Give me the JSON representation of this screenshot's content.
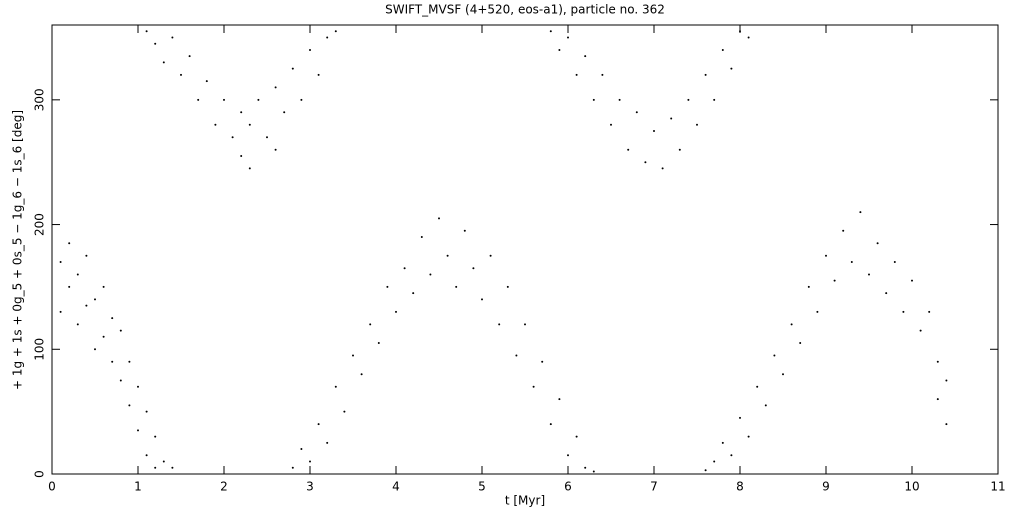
{
  "chart_data": {
    "type": "scatter",
    "title": "SWIFT_MVSF (4+520, eos-a1), particle no. 362",
    "x_label": "t [Myr]",
    "y_label": "+ 1g + 1s + 0g_5 + 0s_5 − 1g_6 − 1s_6 [deg]",
    "color": "#000000",
    "xlim": [
      0,
      11
    ],
    "ylim": [
      0,
      360
    ],
    "xticks": [
      0,
      1,
      2,
      3,
      4,
      5,
      6,
      7,
      8,
      9,
      10,
      11
    ],
    "yticks": [
      0,
      100,
      200,
      300
    ],
    "x": [
      0.1,
      0.1,
      0.2,
      0.2,
      0.3,
      0.3,
      0.4,
      0.4,
      0.5,
      0.5,
      0.6,
      0.6,
      0.7,
      0.7,
      0.8,
      0.8,
      0.9,
      0.9,
      1.0,
      1.0,
      1.1,
      1.1,
      1.2,
      1.2,
      1.3,
      1.4,
      1.1,
      1.2,
      1.3,
      1.4,
      1.5,
      1.6,
      1.7,
      1.8,
      1.9,
      2.0,
      2.1,
      2.2,
      2.2,
      2.3,
      2.3,
      2.4,
      2.5,
      2.6,
      2.6,
      2.7,
      2.8,
      2.9,
      3.0,
      3.1,
      3.2,
      3.3,
      2.8,
      2.9,
      3.0,
      3.1,
      3.2,
      3.3,
      3.4,
      3.5,
      3.6,
      3.7,
      3.8,
      3.9,
      4.0,
      4.1,
      4.2,
      4.3,
      4.4,
      4.5,
      4.6,
      4.7,
      4.8,
      4.9,
      5.0,
      5.1,
      5.2,
      5.3,
      5.4,
      5.5,
      5.6,
      5.7,
      5.8,
      5.9,
      6.0,
      6.1,
      6.2,
      6.3,
      5.8,
      5.9,
      6.0,
      6.1,
      6.2,
      6.3,
      6.4,
      6.5,
      6.6,
      6.7,
      6.8,
      6.9,
      7.0,
      7.1,
      7.2,
      7.3,
      7.4,
      7.5,
      7.6,
      7.7,
      7.8,
      7.9,
      8.0,
      8.1,
      7.6,
      7.7,
      7.8,
      7.9,
      8.0,
      8.1,
      8.2,
      8.3,
      8.4,
      8.5,
      8.6,
      8.7,
      8.8,
      8.9,
      9.0,
      9.1,
      9.2,
      9.3,
      9.4,
      9.5,
      9.6,
      9.7,
      9.8,
      9.9,
      10.0,
      10.1,
      10.2,
      10.3,
      10.3,
      10.4,
      10.4
    ],
    "values": [
      170,
      130,
      185,
      150,
      160,
      120,
      175,
      135,
      140,
      100,
      150,
      110,
      125,
      90,
      115,
      75,
      90,
      55,
      70,
      35,
      50,
      15,
      30,
      5,
      10,
      5,
      355,
      345,
      330,
      350,
      320,
      335,
      300,
      315,
      280,
      300,
      270,
      255,
      290,
      245,
      280,
      300,
      270,
      310,
      260,
      290,
      325,
      300,
      340,
      320,
      350,
      355,
      5,
      20,
      10,
      40,
      25,
      70,
      50,
      95,
      80,
      120,
      105,
      150,
      130,
      165,
      145,
      190,
      160,
      205,
      175,
      150,
      195,
      165,
      140,
      175,
      120,
      150,
      95,
      120,
      70,
      90,
      40,
      60,
      15,
      30,
      5,
      2,
      355,
      340,
      350,
      320,
      335,
      300,
      320,
      280,
      300,
      260,
      290,
      250,
      275,
      245,
      285,
      260,
      300,
      280,
      320,
      300,
      340,
      325,
      355,
      350,
      3,
      10,
      25,
      15,
      45,
      30,
      70,
      55,
      95,
      80,
      120,
      105,
      150,
      130,
      175,
      155,
      195,
      170,
      210,
      160,
      185,
      145,
      170,
      130,
      155,
      115,
      130,
      90,
      60,
      75,
      40
    ]
  }
}
